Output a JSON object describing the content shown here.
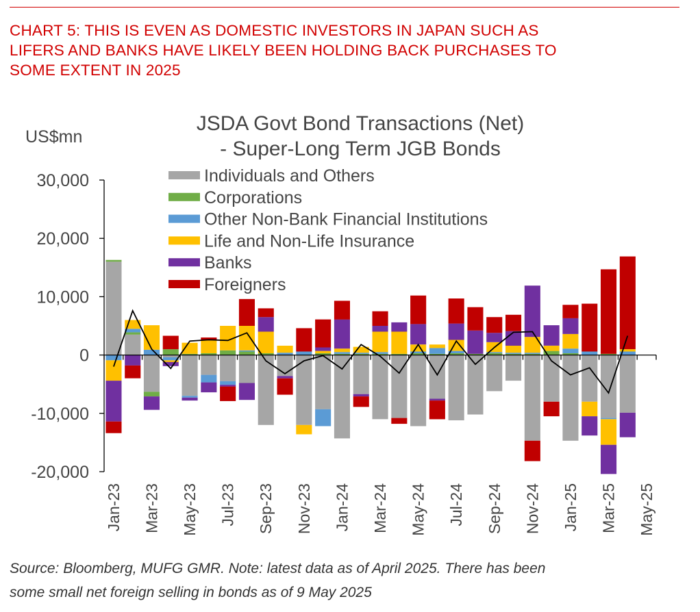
{
  "header": {
    "headline_lines": [
      "CHART 5: THIS IS EVEN AS DOMESTIC INVESTORS IN JAPAN SUCH AS",
      "LIFERS AND BANKS HAVE LIKELY BEEN HOLDING BACK PURCHASES TO",
      "SOME EXTENT IN 2025"
    ]
  },
  "footer": {
    "source_lines": [
      "Source: Bloomberg, MUFG GMR. Note: latest data as of April 2025. There has been",
      "some small net foreign selling in bonds as of 9 May 2025"
    ]
  },
  "colors": {
    "headline": "#d10000",
    "axis": "#000000",
    "text": "#444444"
  },
  "chart_data": {
    "type": "bar",
    "stacked": true,
    "title_lines": [
      "JSDA Govt Bond Transactions (Net)",
      "- Super-Long Term JGB Bonds"
    ],
    "ylabel": "US$mn",
    "ylim": [
      -20000,
      30000
    ],
    "yticks": [
      30000,
      20000,
      10000,
      0,
      -10000,
      -20000
    ],
    "ytick_labels": [
      "30,000",
      "20,000",
      "10,000",
      "0",
      "-10,000",
      "-20,000"
    ],
    "legend_position": "top-left",
    "categories": [
      "Jan-23",
      "Feb-23",
      "Mar-23",
      "Apr-23",
      "May-23",
      "Jun-23",
      "Jul-23",
      "Aug-23",
      "Sep-23",
      "Oct-23",
      "Nov-23",
      "Dec-23",
      "Jan-24",
      "Feb-24",
      "Mar-24",
      "Apr-24",
      "May-24",
      "Jun-24",
      "Jul-24",
      "Aug-24",
      "Sep-24",
      "Oct-24",
      "Nov-24",
      "Dec-24",
      "Jan-25",
      "Feb-25",
      "Mar-25",
      "Apr-25",
      "May-25"
    ],
    "x_tick_labels": [
      "Jan-23",
      "Mar-23",
      "May-23",
      "Jul-23",
      "Sep-23",
      "Nov-23",
      "Jan-24",
      "Mar-24",
      "May-24",
      "Jul-24",
      "Sep-24",
      "Nov-24",
      "Jan-25",
      "Mar-25",
      "May-25"
    ],
    "series": [
      {
        "name": "Individuals and Others",
        "color": "#a6a6a6",
        "values": [
          16000,
          3500,
          -6300,
          -400,
          -7000,
          -3400,
          -4500,
          -4800,
          -12000,
          -3600,
          -12000,
          -9300,
          -14300,
          -6700,
          -11000,
          -10800,
          -12200,
          -7500,
          -11200,
          -10200,
          -6200,
          -4400,
          -14700,
          -8000,
          -14700,
          -8000,
          -10800,
          -9900,
          0
        ]
      },
      {
        "name": "Corporations",
        "color": "#70ad47",
        "values": [
          300,
          400,
          -800,
          1000,
          200,
          300,
          800,
          600,
          300,
          0,
          0,
          300,
          200,
          200,
          200,
          200,
          300,
          200,
          300,
          200,
          300,
          200,
          200,
          700,
          300,
          0,
          200,
          0,
          0
        ]
      },
      {
        "name": "Other Non-Bank Financial Institutions",
        "color": "#5b9bd5",
        "values": [
          -900,
          600,
          900,
          -500,
          -300,
          -1300,
          -600,
          200,
          0,
          400,
          600,
          -2900,
          300,
          200,
          300,
          0,
          300,
          1000,
          400,
          0,
          200,
          200,
          200,
          0,
          800,
          600,
          -200,
          600,
          0
        ]
      },
      {
        "name": "Life and Non-Life Insurance",
        "color": "#ffc000",
        "values": [
          -3500,
          1500,
          4200,
          -300,
          1900,
          2200,
          4200,
          4200,
          3700,
          1200,
          -1600,
          400,
          600,
          1000,
          3500,
          3800,
          1200,
          600,
          1900,
          0,
          1700,
          1200,
          2700,
          900,
          2500,
          -2500,
          -4400,
          400,
          0
        ]
      },
      {
        "name": "Banks",
        "color": "#7030a0",
        "values": [
          -7000,
          -1800,
          -2300,
          -700,
          -500,
          -1700,
          -300,
          -2900,
          2500,
          -400,
          0,
          600,
          5000,
          -400,
          1000,
          1600,
          3500,
          -300,
          2800,
          4000,
          1600,
          2500,
          8800,
          3500,
          2700,
          -3300,
          -5000,
          -4200,
          0
        ]
      },
      {
        "name": "Foreigners",
        "color": "#c00000",
        "values": [
          -2000,
          -2200,
          0,
          2300,
          0,
          500,
          -2500,
          4600,
          1500,
          -2800,
          4000,
          4800,
          3200,
          -1800,
          2500,
          -1000,
          4900,
          -3200,
          4300,
          4000,
          2700,
          2800,
          -3500,
          -2500,
          2300,
          8200,
          14500,
          15900,
          0
        ]
      }
    ],
    "net_line": {
      "values": [
        -2000,
        7600,
        1000,
        -2300,
        2400,
        2600,
        2500,
        3800,
        -1000,
        -3200,
        -1000,
        -100,
        -2400,
        1800,
        -200,
        -3100,
        1800,
        -3400,
        2400,
        -1600,
        1300,
        3900,
        4000,
        -1000,
        -3400,
        -2200,
        -6500,
        3300,
        null
      ]
    }
  }
}
